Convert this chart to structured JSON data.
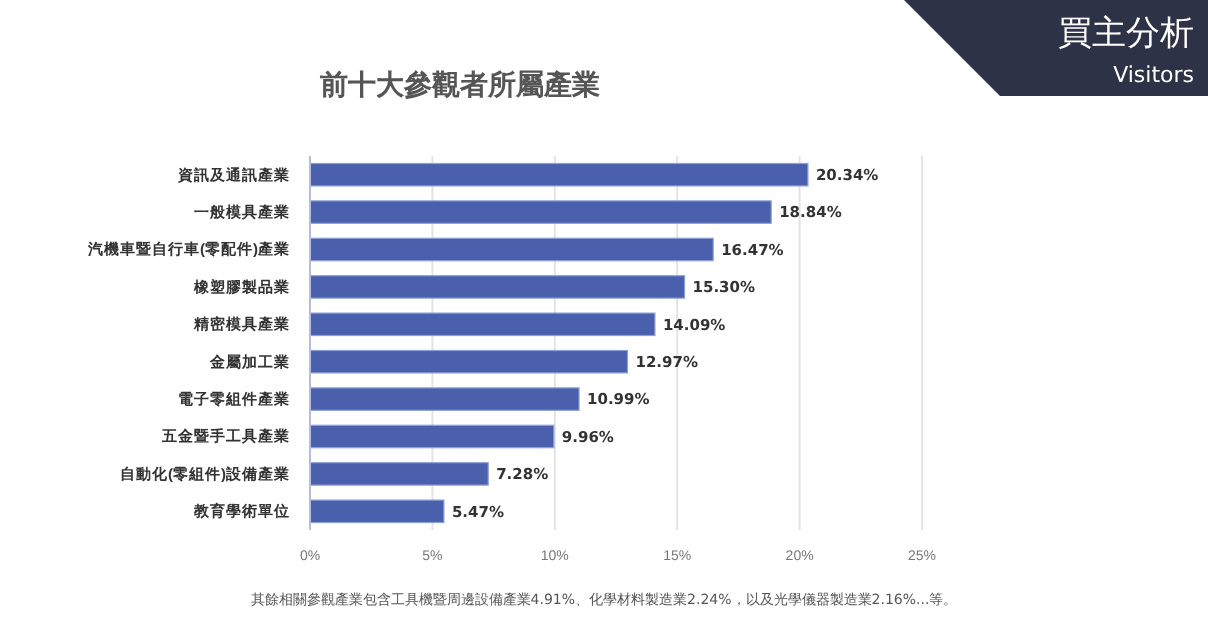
{
  "chart_data": {
    "type": "bar",
    "orientation": "horizontal",
    "title": "前十大參觀者所屬產業",
    "categories": [
      "資訊及通訊產業",
      "一般模具產業",
      "汽機車暨自行車(零配件)產業",
      "橡塑膠製品業",
      "精密模具產業",
      "金屬加工業",
      "電子零組件產業",
      "五金暨手工具產業",
      "自動化(零組件)設備產業",
      "教育學術單位"
    ],
    "values": [
      20.34,
      18.84,
      16.47,
      15.3,
      14.09,
      12.97,
      10.99,
      9.96,
      7.28,
      5.47
    ],
    "value_labels": [
      "20.34%",
      "18.84%",
      "16.47%",
      "15.30%",
      "14.09%",
      "12.97%",
      "10.99%",
      "9.96%",
      "7.28%",
      "5.47%"
    ],
    "color": "#4a60ad",
    "xlim": [
      0,
      25
    ],
    "xticks": [
      {
        "value": 0,
        "label": "0%"
      },
      {
        "value": 5,
        "label": "5%"
      },
      {
        "value": 10,
        "label": "10%"
      },
      {
        "value": 15,
        "label": "15%"
      },
      {
        "value": 20,
        "label": "20%"
      },
      {
        "value": 25,
        "label": "25%"
      }
    ],
    "grid": "x",
    "annotations": [
      "其餘相關參觀產業包含工具機暨周邊設備產業4.91%、化學材料製造業2.24%，以及光學儀器製造業2.16%...等。",
      "買主分析",
      "Visitors"
    ]
  }
}
